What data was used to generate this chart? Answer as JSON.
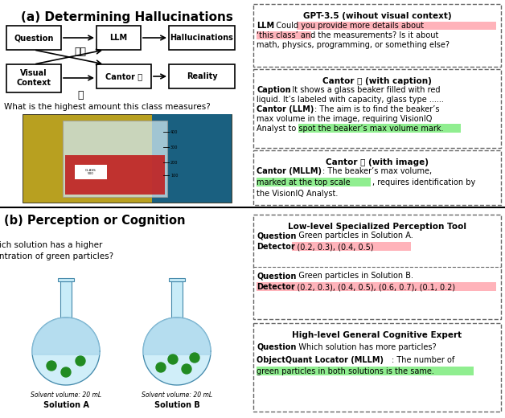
{
  "fig_width": 6.28,
  "fig_height": 5.2,
  "dpi": 100,
  "bg_color": "#ffffff",
  "section_a_title": "(a) Determining Hallucinations",
  "section_b_title": "(b) Perception or Cognition",
  "question_a": "What is the highest amount this class measures?",
  "question_b": "Which solution has a higher\nconcentration of green particles?",
  "pink_highlight": "#ffb3ba",
  "green_highlight": "#90ee90",
  "dashed_color": "#666666"
}
